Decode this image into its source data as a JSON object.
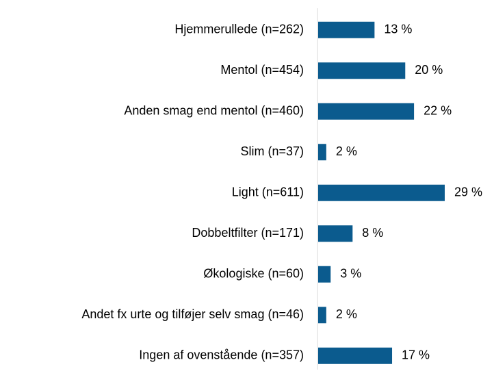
{
  "chart_data": {
    "type": "bar",
    "orientation": "horizontal",
    "categories": [
      "Hjemmerullede (n=262)",
      "Mentol (n=454)",
      "Anden smag end mentol (n=460)",
      "Slim (n=37)",
      "Light (n=611)",
      "Dobbeltfilter (n=171)",
      "Økologiske (n=60)",
      "Andet fx urte og tilføjer selv smag (n=46)",
      "Ingen af ovenstående (n=357)"
    ],
    "values": [
      13,
      20,
      22,
      2,
      29,
      8,
      3,
      2,
      17
    ],
    "value_labels": [
      "13 %",
      "20 %",
      "22 %",
      "2 %",
      "29 %",
      "8 %",
      "3 %",
      "2 %",
      "17 %"
    ],
    "color": "#0b5b8e"
  }
}
